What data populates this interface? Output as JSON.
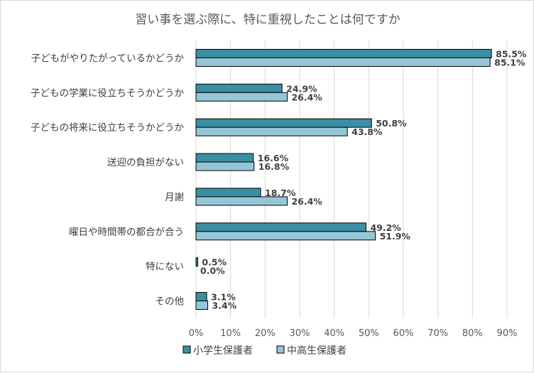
{
  "colors": {
    "series1": "#3a8fa3",
    "series2": "#95c6d6",
    "bar_border": "#000000",
    "grid": "#d9d9d9",
    "text": "#404040"
  },
  "chart_data": {
    "type": "bar",
    "orientation": "horizontal",
    "title": "習い事を選ぶ際に、特に重視したことは何ですか",
    "categories": [
      "子どもがやりたがっているかどうか",
      "子どもの学業に役立ちそうかどうか",
      "子どもの将来に役立ちそうかどうか",
      "送迎の負担がない",
      "月謝",
      "曜日や時間帯の都合が合う",
      "特にない",
      "その他"
    ],
    "series": [
      {
        "name": "小学生保護者",
        "values": [
          85.5,
          24.9,
          50.8,
          16.6,
          18.7,
          49.2,
          0.5,
          3.1
        ],
        "labels": [
          "85.5%",
          "24.9%",
          "50.8%",
          "16.6%",
          "18.7%",
          "49.2%",
          "0.5%",
          "3.1%"
        ]
      },
      {
        "name": "中高生保護者",
        "values": [
          85.1,
          26.4,
          43.8,
          16.8,
          26.4,
          51.9,
          0.0,
          3.4
        ],
        "labels": [
          "85.1%",
          "26.4%",
          "43.8%",
          "16.8%",
          "26.4%",
          "51.9%",
          "0.0%",
          "3.4%"
        ]
      }
    ],
    "xlim": [
      0,
      90
    ],
    "ticks": [
      "0%",
      "10%",
      "20%",
      "30%",
      "40%",
      "50%",
      "60%",
      "70%",
      "80%",
      "90%"
    ],
    "grid": true,
    "legend_position": "bottom"
  }
}
